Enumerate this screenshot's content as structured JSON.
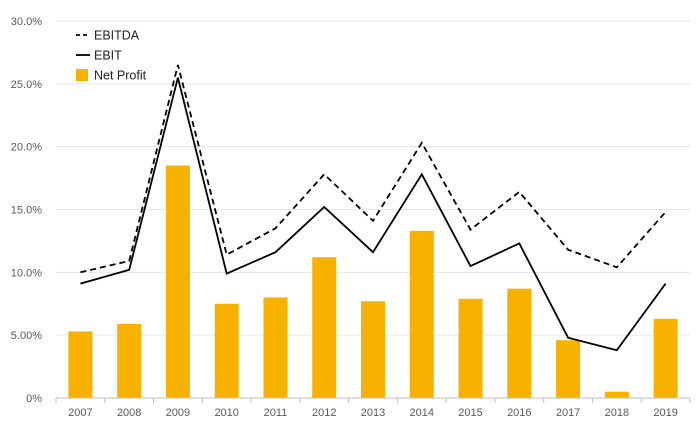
{
  "chart_data": {
    "type": "bar",
    "categories": [
      "2007",
      "2008",
      "2009",
      "2010",
      "2011",
      "2012",
      "2013",
      "2014",
      "2015",
      "2016",
      "2017",
      "2018",
      "2019"
    ],
    "series": [
      {
        "name": "EBITDA",
        "type": "line",
        "style": "dashed",
        "color": "#000000",
        "values": [
          10.0,
          10.9,
          26.5,
          11.4,
          13.5,
          17.8,
          14.1,
          20.3,
          13.4,
          16.4,
          11.8,
          10.4,
          14.8
        ]
      },
      {
        "name": "EBIT",
        "type": "line",
        "style": "solid",
        "color": "#000000",
        "values": [
          9.1,
          10.2,
          25.5,
          9.9,
          11.6,
          15.2,
          11.6,
          17.8,
          10.5,
          12.3,
          4.8,
          3.8,
          9.1
        ]
      },
      {
        "name": "Net Profit",
        "type": "bar",
        "color": "#F7B200",
        "values": [
          5.3,
          5.9,
          18.5,
          7.5,
          8.0,
          11.2,
          7.7,
          13.3,
          7.9,
          8.7,
          4.6,
          0.5,
          6.3
        ]
      }
    ],
    "y_ticks": [
      "0%",
      "5.00%",
      "10.0%",
      "15.0%",
      "20.0%",
      "25.0%",
      "30.0%"
    ],
    "ylim": [
      0,
      30
    ],
    "y_tick_values": [
      0,
      5,
      10,
      15,
      20,
      25,
      30
    ],
    "grid": true,
    "legend_position": "top-left",
    "gridline_color": "#e6e6e6",
    "axis_color": "#bfbfbf"
  }
}
